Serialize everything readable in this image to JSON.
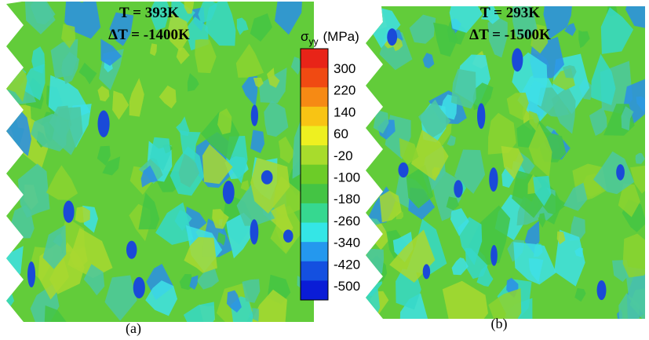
{
  "panels": [
    {
      "temperature": "T = 393K",
      "delta": "ΔT = -1400K",
      "caption": "(a)"
    },
    {
      "temperature": "T = 293K",
      "delta": "ΔT = -1500K",
      "caption": "(b)"
    }
  ],
  "colorbar": {
    "symbol": "σ",
    "subscript": "yy",
    "unit": "(MPa)",
    "levels": [
      "300",
      "220",
      "140",
      "60",
      "-20",
      "-100",
      "-180",
      "-260",
      "-340",
      "-420",
      "-500"
    ],
    "colors": [
      "#e82418",
      "#f04a12",
      "#f68a14",
      "#f8c414",
      "#eef020",
      "#a8dc2c",
      "#6ccc28",
      "#44c444",
      "#36d890",
      "#34e6e6",
      "#2498ee",
      "#1450e0",
      "#0a1cd6"
    ]
  }
}
